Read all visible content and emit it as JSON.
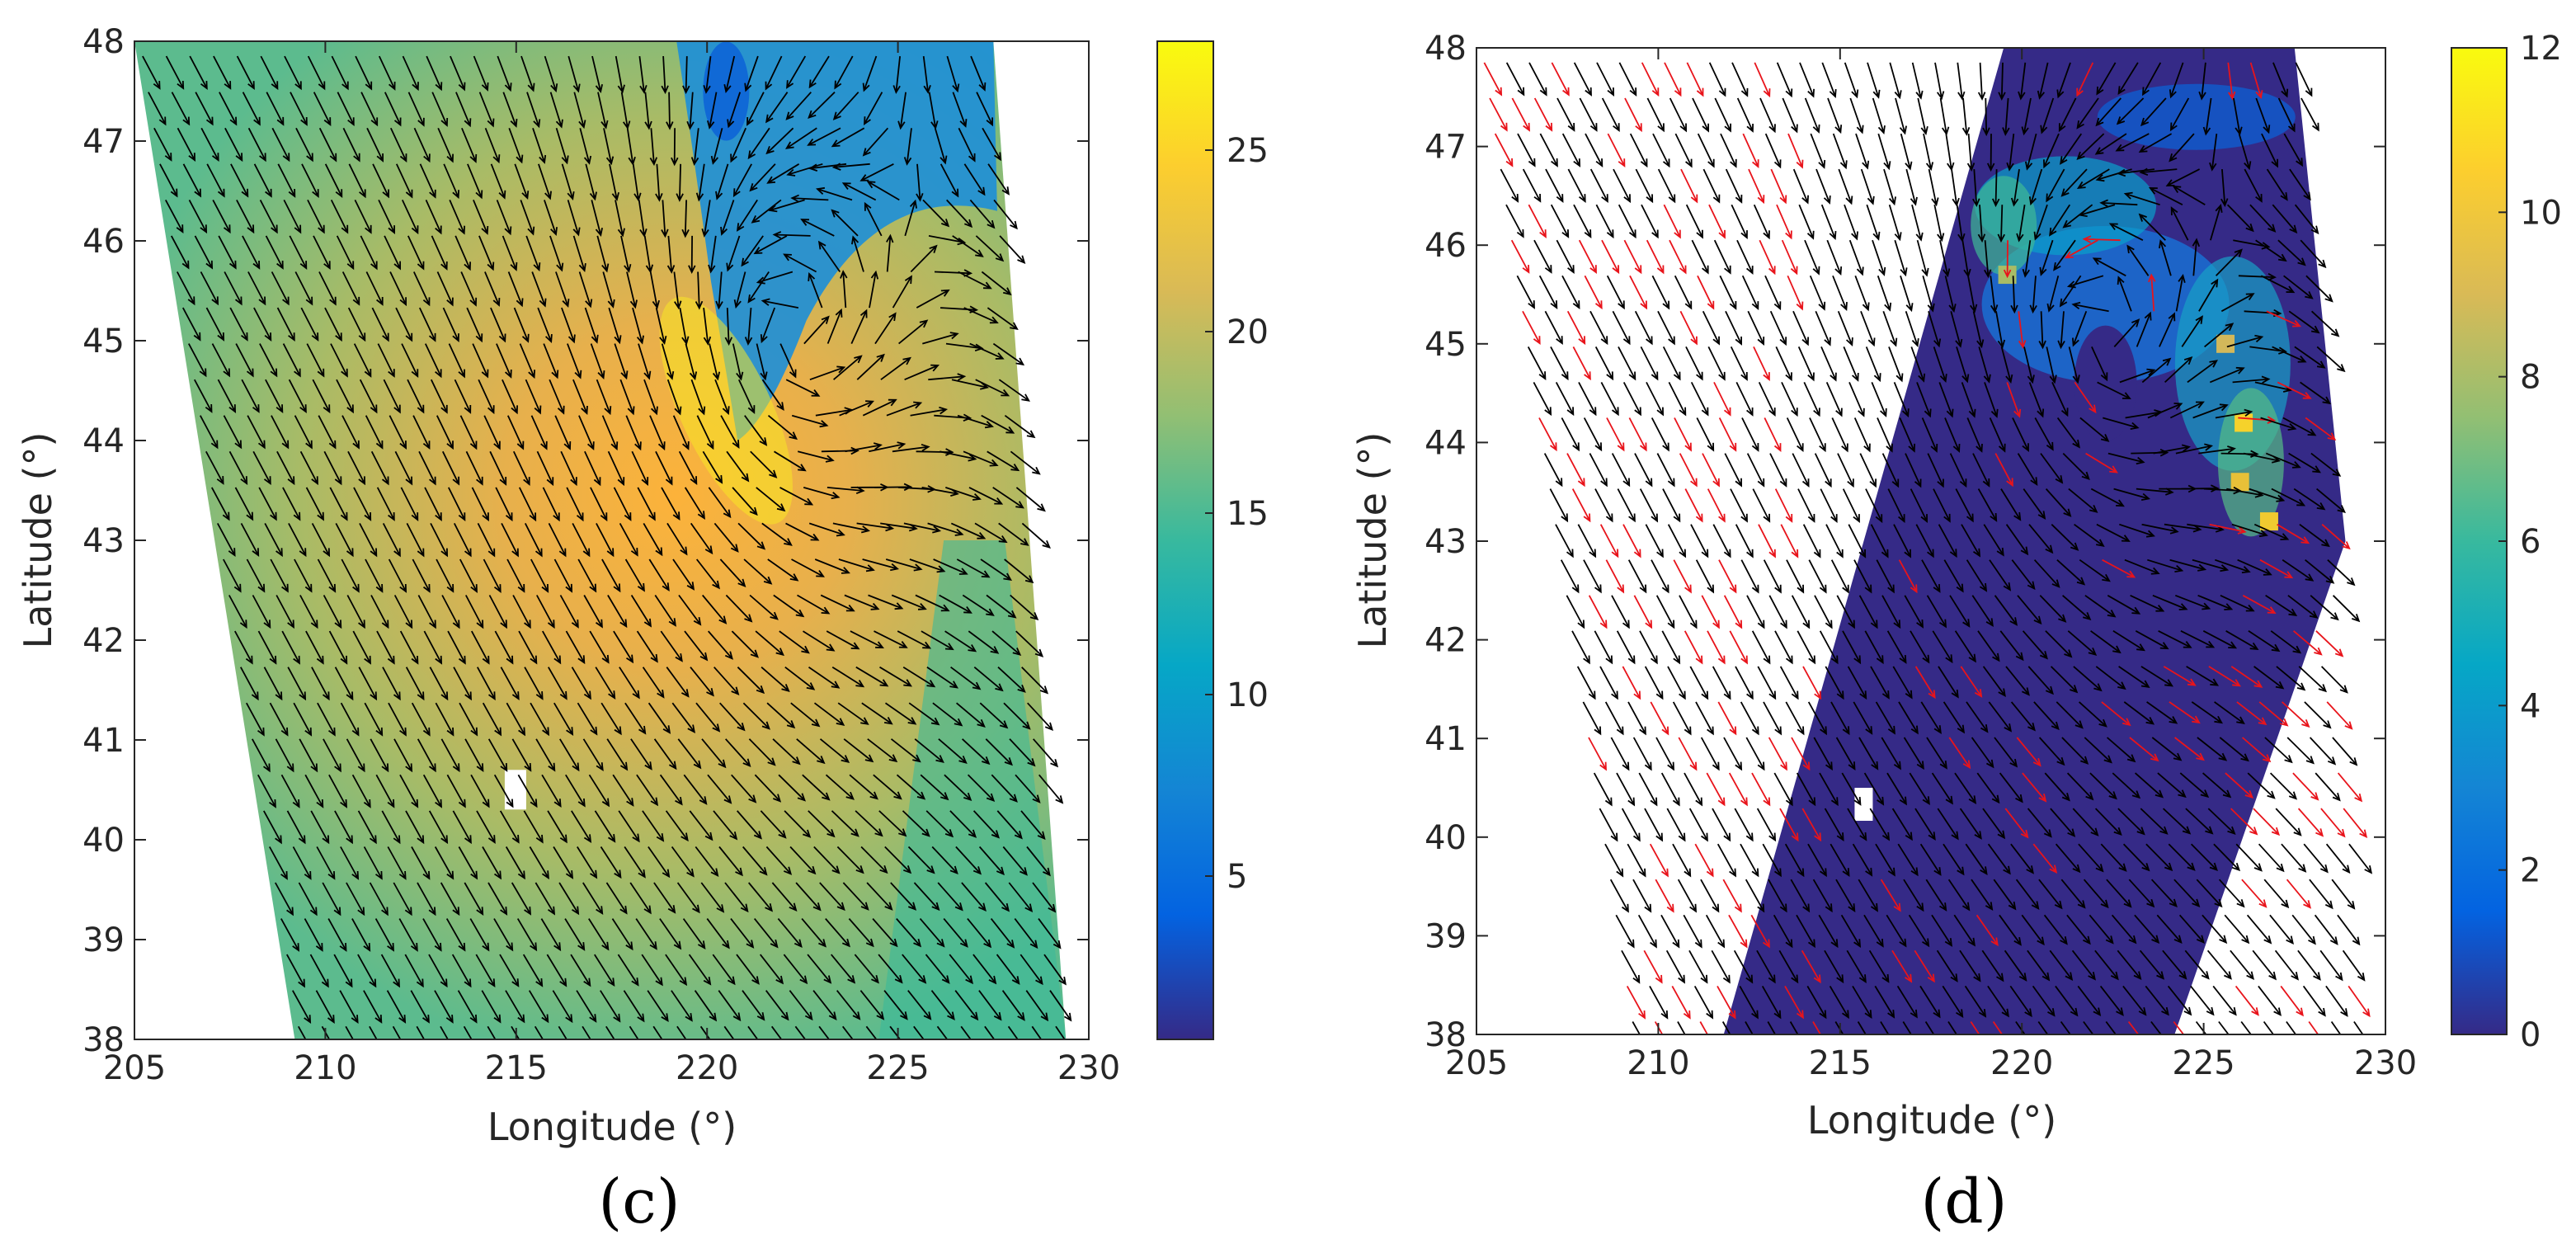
{
  "chart_data": [
    {
      "type": "heatmap",
      "panel_label": "(c)",
      "xlabel": "Longitude (°)",
      "ylabel": "Latitude (°)",
      "xlim": [
        205,
        230
      ],
      "ylim": [
        38,
        48
      ],
      "xticks": [
        205,
        210,
        215,
        220,
        225,
        230
      ],
      "xtick_labels": [
        "205",
        "210",
        "215",
        "220",
        "225",
        "230"
      ],
      "yticks": [
        38,
        39,
        40,
        41,
        42,
        43,
        44,
        45,
        46,
        47,
        48
      ],
      "ytick_labels": [
        "38",
        "39",
        "40",
        "41",
        "42",
        "43",
        "44",
        "45",
        "46",
        "47",
        "48"
      ],
      "colorbar": {
        "colormap": "parula",
        "range": [
          0.5,
          28
        ],
        "ticks": [
          5,
          10,
          15,
          20,
          25
        ],
        "tick_labels": [
          "5",
          "10",
          "15",
          "20",
          "25"
        ]
      },
      "field": "wind speed with wind direction vectors",
      "swath_lon_bounds": {
        "top": [
          205,
          227.5
        ],
        "bottom": [
          209.2,
          229.4
        ]
      },
      "cyclone_center": [
        222.3,
        45.1
      ],
      "arrow_color": "#000000"
    },
    {
      "type": "heatmap",
      "panel_label": "(d)",
      "xlabel": "Longitude (°)",
      "ylabel": "Latitude (°)",
      "xlim": [
        205,
        230
      ],
      "ylim": [
        38,
        48
      ],
      "xticks": [
        205,
        210,
        215,
        220,
        225,
        230
      ],
      "xtick_labels": [
        "205",
        "210",
        "215",
        "220",
        "225",
        "230"
      ],
      "yticks": [
        38,
        39,
        40,
        41,
        42,
        43,
        44,
        45,
        46,
        47,
        48
      ],
      "ytick_labels": [
        "38",
        "39",
        "40",
        "41",
        "42",
        "43",
        "44",
        "45",
        "46",
        "47",
        "48"
      ],
      "colorbar": {
        "colormap": "parula",
        "range": [
          0,
          12
        ],
        "ticks": [
          0,
          2,
          4,
          6,
          8,
          10,
          12
        ],
        "tick_labels": [
          "0",
          "2",
          "4",
          "6",
          "8",
          "10",
          "12"
        ]
      },
      "field": "rain rate with wind direction vectors",
      "data_region_lon_bounds": {
        "top": [
          219.5,
          227.5
        ],
        "bottom": [
          211.8,
          224.2
        ]
      },
      "cyclone_center": [
        222.3,
        45.1
      ],
      "arrow_colors": {
        "normal": "#000000",
        "flagged": "#e8141b"
      }
    }
  ],
  "colors": {
    "parula": [
      "#352a87",
      "#0363e1",
      "#1485d4",
      "#06a7c6",
      "#38b99e",
      "#92bf73",
      "#d9ba56",
      "#fcce2e",
      "#f9fb0e"
    ]
  }
}
